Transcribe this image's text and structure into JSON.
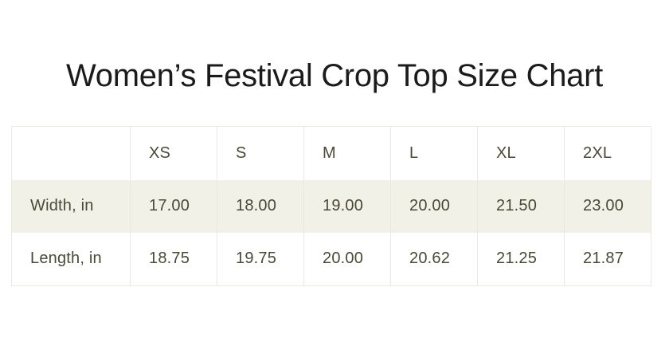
{
  "title": {
    "text": "Women’s Festival Crop Top Size Chart"
  },
  "size_chart": {
    "columns": [
      "",
      "XS",
      "S",
      "M",
      "L",
      "XL",
      "2XL"
    ],
    "rows": [
      {
        "label": "Width, in",
        "values": [
          "17.00",
          "18.00",
          "19.00",
          "20.00",
          "21.50",
          "23.00"
        ]
      },
      {
        "label": "Length, in",
        "values": [
          "18.75",
          "19.75",
          "20.00",
          "20.62",
          "21.25",
          "21.87"
        ]
      }
    ]
  },
  "colors": {
    "page_background": "#ffffff",
    "title_text": "#1b1b1b",
    "table_text": "#4a4936",
    "table_border": "#e9e8e1",
    "highlight_row_background": "#f2f1e8"
  },
  "chart_data": {
    "type": "table",
    "title": "Women’s Festival Crop Top Size Chart",
    "columns": [
      "XS",
      "S",
      "M",
      "L",
      "XL",
      "2XL"
    ],
    "rows": [
      {
        "label": "Width, in",
        "values": [
          17.0,
          18.0,
          19.0,
          20.0,
          21.5,
          23.0
        ]
      },
      {
        "label": "Length, in",
        "values": [
          18.75,
          19.75,
          20.0,
          20.62,
          21.25,
          21.87
        ]
      }
    ]
  }
}
